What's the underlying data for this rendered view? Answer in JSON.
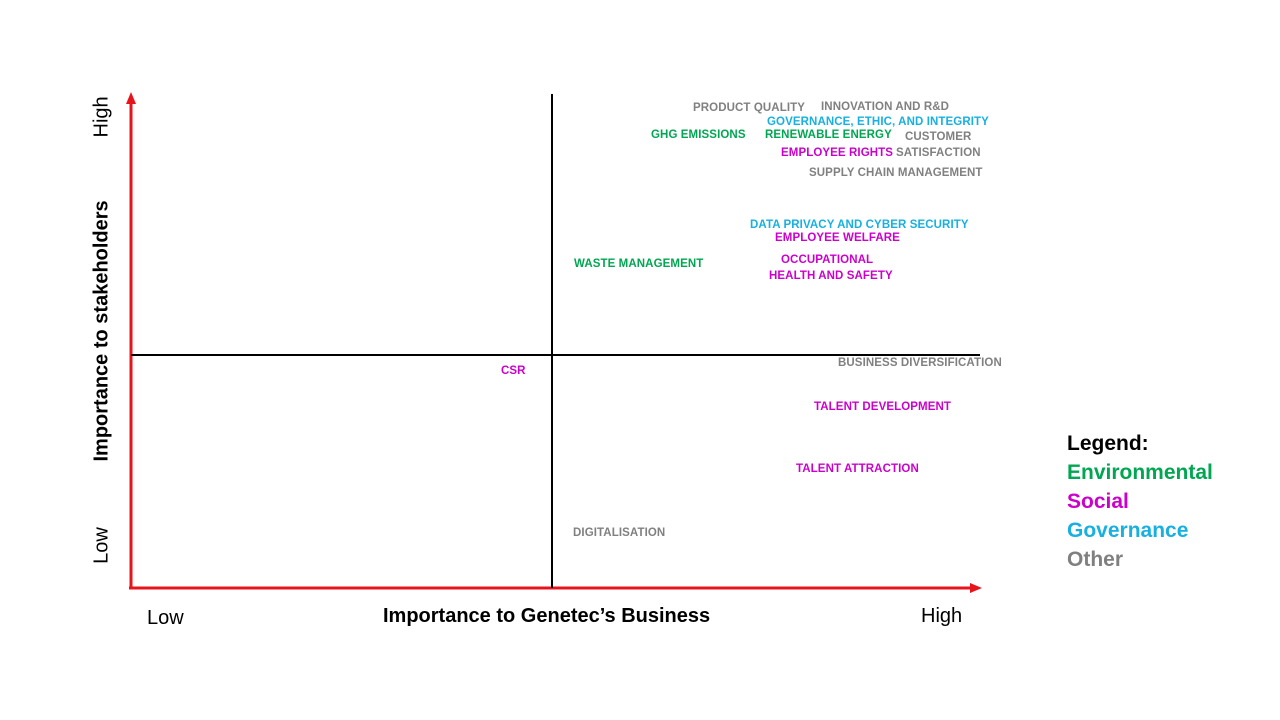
{
  "colors": {
    "axis": "#e8141c",
    "divider": "#000000",
    "environmental": "#00a651",
    "social": "#cc00cc",
    "governance": "#17b0e0",
    "other": "#808080"
  },
  "x_axis": {
    "title": "Importance to Genetec’s Business",
    "low": "Low",
    "high": "High"
  },
  "y_axis": {
    "title": "Importance to stakeholders",
    "low": "Low",
    "high": "High"
  },
  "legend": {
    "title": "Legend:",
    "environmental": "Environmental",
    "social": "Social",
    "governance": "Governance",
    "other": "Other"
  },
  "topics": {
    "product_quality": "PRODUCT QUALITY",
    "innovation": "INNOVATION AND R&D",
    "governance_ethics": "GOVERNANCE, ETHIC, AND INTEGRITY",
    "ghg": "GHG EMISSIONS",
    "renewable": "RENEWABLE ENERGY",
    "customer_1": "CUSTOMER",
    "customer_2": "SATISFACTION",
    "employee_rights": "EMPLOYEE RIGHTS",
    "supply_chain": "SUPPLY CHAIN MANAGEMENT",
    "data_privacy": "DATA PRIVACY AND CYBER SECURITY",
    "employee_welfare": "EMPLOYEE WELFARE",
    "waste": "WASTE MANAGEMENT",
    "ohs_1": "OCCUPATIONAL",
    "ohs_2": "HEALTH AND SAFETY",
    "business_div": "BUSINESS DIVERSIFICATION",
    "csr": "CSR",
    "talent_dev": "TALENT DEVELOPMENT",
    "talent_attr": "TALENT ATTRACTION",
    "digital": "DIGITALISATION"
  }
}
